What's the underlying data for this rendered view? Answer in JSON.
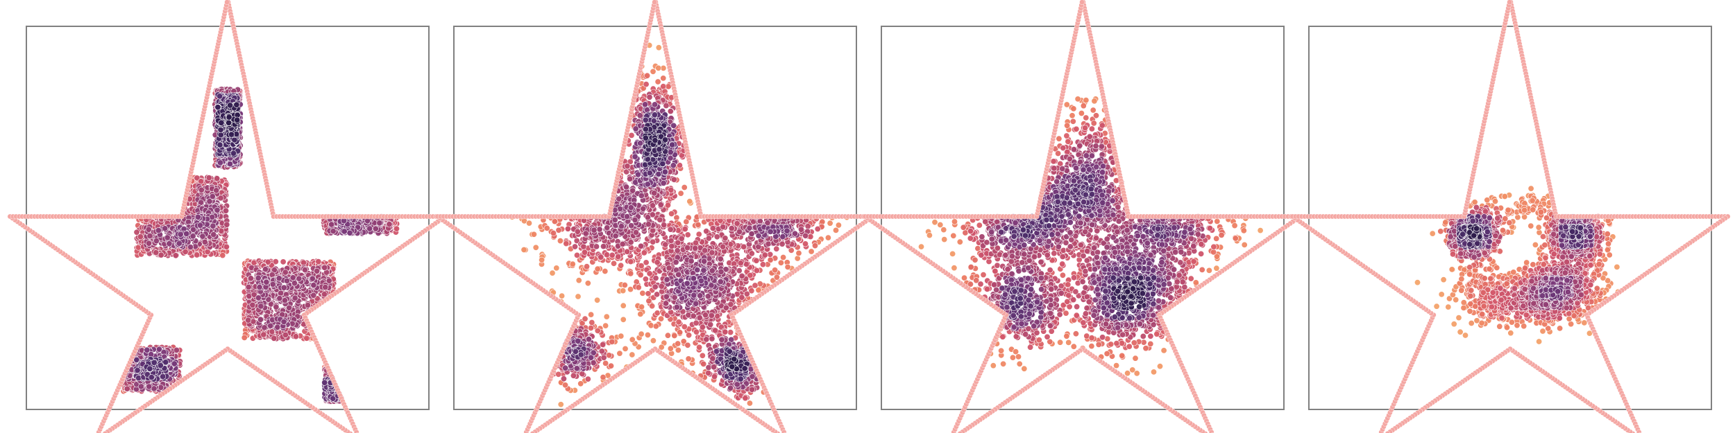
{
  "figure": {
    "panel_count": 4,
    "background": "#ffffff",
    "frame_color": "#808080",
    "boundary_color": "#f4a7a3",
    "colormap": [
      "#2c1a4a",
      "#4f2d6c",
      "#7a3a7a",
      "#a8446f",
      "#d1556a",
      "#ec7a62",
      "#f4a76b"
    ]
  },
  "chart_data": [
    {
      "type": "scatter",
      "title": "",
      "xlabel": "",
      "ylabel": "",
      "axes_visible": false,
      "grid": false,
      "legend": "none",
      "boundary": "star",
      "description_key": "checkerboard",
      "clusters": [
        {
          "kind": "rect",
          "center": [
            -0.27,
            0.0
          ],
          "size": [
            0.53,
            0.46
          ],
          "density": 1.0
        },
        {
          "kind": "rect",
          "center": [
            0.36,
            -0.49
          ],
          "size": [
            0.53,
            0.46
          ],
          "density": 1.0
        },
        {
          "kind": "rect",
          "center": [
            0.0,
            0.52
          ],
          "size": [
            0.15,
            0.46
          ],
          "density": 0.7
        },
        {
          "kind": "rect",
          "center": [
            0.78,
            0.0
          ],
          "size": [
            0.43,
            0.2
          ],
          "density": 0.7
        },
        {
          "kind": "rect",
          "center": [
            -0.45,
            -0.9
          ],
          "size": [
            0.34,
            0.26
          ],
          "density": 0.55
        },
        {
          "kind": "rect",
          "center": [
            0.62,
            -0.98
          ],
          "size": [
            0.1,
            0.22
          ],
          "density": 0.4
        }
      ]
    },
    {
      "type": "scatter",
      "title": "",
      "xlabel": "",
      "ylabel": "",
      "axes_visible": false,
      "grid": false,
      "legend": "none",
      "boundary": "star",
      "clusters": [
        {
          "kind": "blob",
          "center": [
            -0.28,
            0.02
          ],
          "spread": [
            0.22,
            0.17
          ],
          "density": 1.0
        },
        {
          "kind": "blob",
          "center": [
            0.28,
            -0.42
          ],
          "spread": [
            0.2,
            0.2
          ],
          "density": 1.0
        },
        {
          "kind": "blob",
          "center": [
            0.0,
            0.45
          ],
          "spread": [
            0.08,
            0.17
          ],
          "density": 0.7
        },
        {
          "kind": "blob",
          "center": [
            0.68,
            0.0
          ],
          "spread": [
            0.17,
            0.11
          ],
          "density": 0.7
        },
        {
          "kind": "blob",
          "center": [
            -0.52,
            -0.78
          ],
          "spread": [
            0.13,
            0.1
          ],
          "density": 0.55
        },
        {
          "kind": "blob",
          "center": [
            0.48,
            -0.88
          ],
          "spread": [
            0.08,
            0.08
          ],
          "density": 0.4
        }
      ]
    },
    {
      "type": "scatter",
      "title": "",
      "xlabel": "",
      "ylabel": "",
      "axes_visible": false,
      "grid": false,
      "legend": "none",
      "boundary": "star",
      "clusters": [
        {
          "kind": "blob",
          "center": [
            -0.35,
            0.0
          ],
          "spread": [
            0.18,
            0.16
          ],
          "density": 1.0
        },
        {
          "kind": "blob",
          "center": [
            0.28,
            -0.46
          ],
          "spread": [
            0.18,
            0.16
          ],
          "density": 1.0
        },
        {
          "kind": "blob",
          "center": [
            0.52,
            0.02
          ],
          "spread": [
            0.16,
            0.14
          ],
          "density": 0.8
        },
        {
          "kind": "blob",
          "center": [
            0.05,
            0.22
          ],
          "spread": [
            0.12,
            0.2
          ],
          "density": 0.6
        },
        {
          "kind": "blob",
          "center": [
            -0.38,
            -0.52
          ],
          "spread": [
            0.15,
            0.12
          ],
          "density": 0.55
        },
        {
          "kind": "blob",
          "center": [
            0.1,
            -0.15
          ],
          "spread": [
            0.4,
            0.35
          ],
          "density": 0.35
        }
      ]
    },
    {
      "type": "scatter",
      "title": "",
      "xlabel": "",
      "ylabel": "",
      "axes_visible": false,
      "grid": false,
      "legend": "none",
      "boundary": "star",
      "clusters": [
        {
          "kind": "blob",
          "center": [
            -0.22,
            -0.1
          ],
          "spread": [
            0.07,
            0.06
          ],
          "density": 1.0
        },
        {
          "kind": "blob",
          "center": [
            0.38,
            -0.1
          ],
          "spread": [
            0.08,
            0.07
          ],
          "density": 1.0
        },
        {
          "kind": "blob",
          "center": [
            0.12,
            -0.5
          ],
          "spread": [
            0.22,
            0.07
          ],
          "density": 0.75
        },
        {
          "kind": "ring",
          "center": [
            0.12,
            -0.22
          ],
          "radius": [
            0.34,
            0.3
          ],
          "density": 0.6
        },
        {
          "kind": "blob",
          "center": [
            0.28,
            -0.4
          ],
          "spread": [
            0.1,
            0.07
          ],
          "density": 0.7
        }
      ]
    }
  ]
}
